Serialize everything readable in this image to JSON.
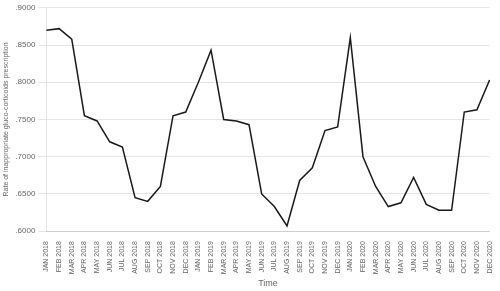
{
  "chart_data": {
    "type": "line",
    "xlabel": "Time",
    "ylabel": "Rate of inappropriate gluco-corticoids prescription",
    "categories": [
      "JAN 2018",
      "FEB 2018",
      "MAR 2018",
      "APR 2018",
      "MAY 2018",
      "JUN 2018",
      "JUL 2018",
      "AUG 2018",
      "SEP 2018",
      "OCT 2018",
      "NOV 2018",
      "DEC 2018",
      "JAN 2019",
      "FEB 2019",
      "MAR 2019",
      "APR 2019",
      "MAY 2019",
      "JUN 2019",
      "JUL 2019",
      "AUG 2019",
      "SEP 2019",
      "OCT 2019",
      "NOV 2019",
      "DEC 2019",
      "JAN 2020",
      "FEB 2020",
      "MAR 2020",
      "APR 2020",
      "MAY 2020",
      "JUN 2020",
      "JUL 2020",
      "AUG 2020",
      "SEP 2020",
      "OCT 2020",
      "NOV 2020",
      "DEC 2020"
    ],
    "values": [
      0.87,
      0.872,
      0.858,
      0.755,
      0.748,
      0.72,
      0.713,
      0.645,
      0.64,
      0.66,
      0.755,
      0.76,
      0.8,
      0.843,
      0.75,
      0.748,
      0.743,
      0.65,
      0.633,
      0.607,
      0.668,
      0.685,
      0.735,
      0.74,
      0.86,
      0.7,
      0.66,
      0.633,
      0.638,
      0.672,
      0.636,
      0.628,
      0.628,
      0.76,
      0.763,
      0.803
    ],
    "color": "#1a1a1a",
    "ylim": [
      0.6,
      0.9
    ],
    "yticks": [
      {
        "value": 0.6,
        "label": ".6000"
      },
      {
        "value": 0.65,
        "label": ".6500"
      },
      {
        "value": 0.7,
        "label": ".7000"
      },
      {
        "value": 0.75,
        "label": ".7500"
      },
      {
        "value": 0.8,
        "label": ".8000"
      },
      {
        "value": 0.85,
        "label": ".8500"
      },
      {
        "value": 0.9,
        "label": ".9000"
      }
    ],
    "grid": true
  }
}
